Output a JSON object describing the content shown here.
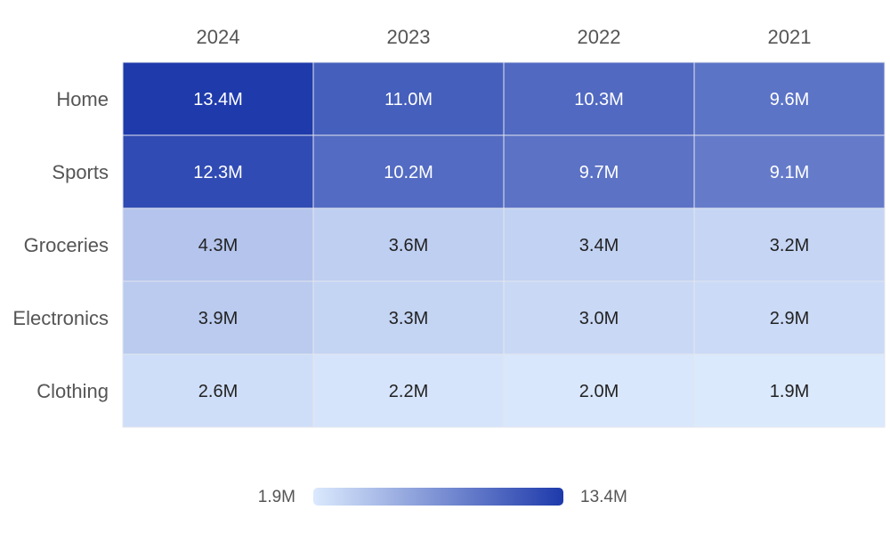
{
  "chart_data": {
    "type": "heatmap",
    "columns": [
      "2024",
      "2023",
      "2022",
      "2021"
    ],
    "rows": [
      "Home",
      "Sports",
      "Groceries",
      "Electronics",
      "Clothing"
    ],
    "values": [
      [
        13.4,
        11.0,
        10.3,
        9.6
      ],
      [
        12.3,
        10.2,
        9.7,
        9.1
      ],
      [
        4.3,
        3.6,
        3.4,
        3.2
      ],
      [
        3.9,
        3.3,
        3.0,
        2.9
      ],
      [
        2.6,
        2.2,
        2.0,
        1.9
      ]
    ],
    "value_labels": [
      [
        "13.4M",
        "11.0M",
        "10.3M",
        "9.6M"
      ],
      [
        "12.3M",
        "10.2M",
        "9.7M",
        "9.1M"
      ],
      [
        "4.3M",
        "3.6M",
        "3.4M",
        "3.2M"
      ],
      [
        "3.9M",
        "3.3M",
        "3.0M",
        "2.9M"
      ],
      [
        "2.6M",
        "2.2M",
        "2.0M",
        "1.9M"
      ]
    ],
    "unit": "M",
    "color_scale": {
      "min": 1.9,
      "max": 13.4,
      "min_label": "1.9M",
      "max_label": "13.4M",
      "low_color": "#dbe9fd",
      "high_color": "#1e3aab"
    },
    "legend": "bottom"
  }
}
